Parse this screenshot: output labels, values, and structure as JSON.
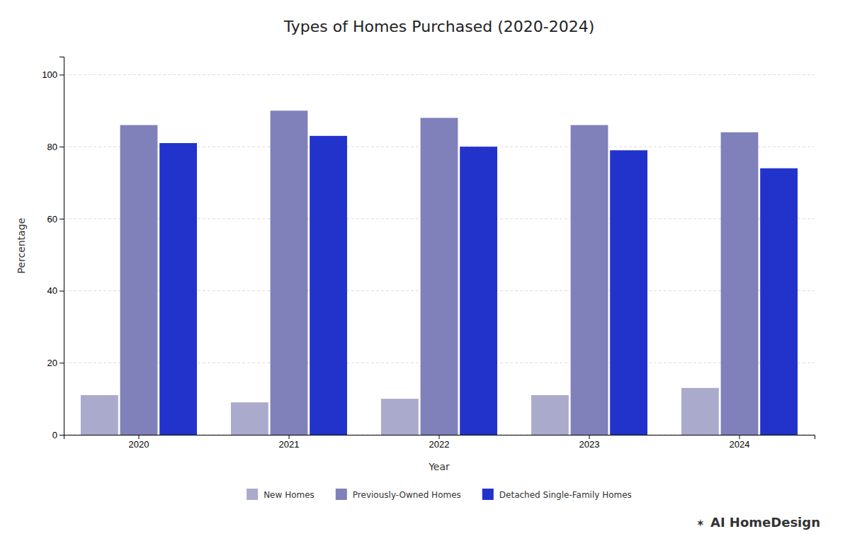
{
  "chart_data": {
    "type": "bar",
    "title": "Types of Homes Purchased (2020-2024)",
    "xlabel": "Year",
    "ylabel": "Percentage",
    "categories": [
      "2020",
      "2021",
      "2022",
      "2023",
      "2024"
    ],
    "series": [
      {
        "name": "New Homes",
        "color": "#aaaacc",
        "values": [
          11,
          9,
          10,
          11,
          13
        ]
      },
      {
        "name": "Previously-Owned Homes",
        "color": "#8080bb",
        "values": [
          86,
          90,
          88,
          86,
          84
        ]
      },
      {
        "name": "Detached Single-Family Homes",
        "color": "#2233cc",
        "values": [
          81,
          83,
          80,
          79,
          74
        ]
      }
    ],
    "ylim": [
      0,
      105
    ],
    "yticks": [
      0,
      20,
      40,
      60,
      80,
      100
    ],
    "grid": true,
    "legend": "bottom",
    "annotations": [
      "✶",
      "AI HomeDesign"
    ]
  }
}
